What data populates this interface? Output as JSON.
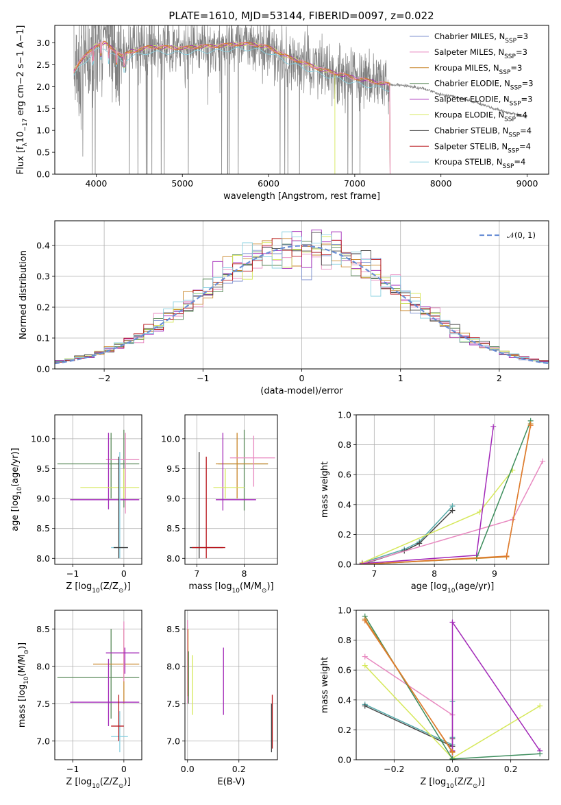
{
  "colors": {
    "chabrier_miles": "#7c8fcf",
    "salpeter_miles": "#e889c0",
    "kroupa_miles": "#c9862a",
    "chabrier_elodie": "#5a8a5a",
    "salpeter_elodie": "#a228b8",
    "kroupa_elodie": "#d6e85a",
    "chabrier_stelib": "#444444",
    "salpeter_stelib": "#b8141a",
    "kroupa_stelib": "#88d0e0",
    "observed": "#7f7f7f",
    "gauss": "#6a8fd6",
    "orange": "#e07b2f",
    "green2": "#3c8d5c",
    "teal": "#55aaaa"
  },
  "chart_data": [
    {
      "id": "spectrum",
      "type": "line",
      "title": "PLATE=1610, MJD=53144, FIBERID=0097, z=0.022",
      "xlabel": "wavelength [Angstrom, rest frame]",
      "ylabel_parts": [
        "Flux [f",
        "λ",
        "10",
        "−17",
        " erg cm",
        "−2",
        " s",
        "−1",
        " A",
        "−1",
        "]"
      ],
      "xlim": [
        3520,
        9250
      ],
      "ylim": [
        0,
        3.4
      ],
      "xticks": [
        4000,
        5000,
        6000,
        7000,
        8000,
        9000
      ],
      "yticks": [
        0.0,
        0.5,
        1.0,
        1.5,
        2.0,
        2.5,
        3.0
      ],
      "grid": false,
      "legend_position": "top-right",
      "legend": [
        {
          "label": "Chabrier MILES, N",
          "sub": "SSP",
          "suffix": "=3",
          "color": "chabrier_miles"
        },
        {
          "label": "Salpeter MILES, N",
          "sub": "SSP",
          "suffix": "=3",
          "color": "salpeter_miles"
        },
        {
          "label": "Kroupa MILES, N",
          "sub": "SSP",
          "suffix": "=3",
          "color": "kroupa_miles"
        },
        {
          "label": "Chabrier ELODIE, N",
          "sub": "SSP",
          "suffix": "=3",
          "color": "chabrier_elodie"
        },
        {
          "label": "Salpeter ELODIE, N",
          "sub": "SSP",
          "suffix": "=3",
          "color": "salpeter_elodie"
        },
        {
          "label": "Kroupa ELODIE, N",
          "sub": "SSP",
          "suffix": "=4",
          "color": "kroupa_elodie"
        },
        {
          "label": "Chabrier STELIB, N",
          "sub": "SSP",
          "suffix": "=4",
          "color": "chabrier_stelib"
        },
        {
          "label": "Salpeter STELIB, N",
          "sub": "SSP",
          "suffix": "=4",
          "color": "salpeter_stelib"
        },
        {
          "label": "Kroupa STELIB, N",
          "sub": "SSP",
          "suffix": "=4",
          "color": "kroupa_stelib"
        }
      ],
      "continuum": {
        "x": [
          3740,
          3800,
          3900,
          4000,
          4100,
          4200,
          4300,
          4400,
          4500,
          4600,
          4800,
          5000,
          5200,
          5400,
          5600,
          5800,
          6000,
          6200,
          6400,
          6600,
          6800,
          7000,
          7200,
          7400,
          7600,
          7800,
          8000,
          8200,
          8400,
          8600,
          8800,
          9000
        ],
        "y": [
          2.35,
          2.55,
          2.75,
          2.95,
          3.0,
          2.85,
          2.7,
          2.8,
          2.85,
          2.9,
          2.9,
          2.88,
          2.92,
          2.93,
          2.97,
          2.98,
          2.9,
          2.7,
          2.55,
          2.4,
          2.3,
          2.2,
          2.12,
          2.05,
          2.02,
          1.95,
          1.82,
          1.75,
          1.65,
          1.5,
          1.4,
          1.3
        ]
      },
      "model_ends": {
        "miles_elodie_end": 7410,
        "elodie_end": 6770
      }
    },
    {
      "id": "residuals",
      "type": "bar",
      "xlabel": "(data-model)/error",
      "ylabel": "Normed distribution",
      "xlim": [
        -2.5,
        2.5
      ],
      "ylim": [
        0,
        0.48
      ],
      "xticks": [
        -2,
        -1,
        0,
        1,
        2
      ],
      "yticks": [
        0.0,
        0.1,
        0.2,
        0.3,
        0.4
      ],
      "grid": true,
      "legend_position": "top-right",
      "legend_label": "𝒩(0, 1)",
      "bin_width": 0.1
    },
    {
      "id": "age_vs_Z",
      "type": "scatter",
      "xlabel_parts": [
        "Z [log",
        "10",
        "(Z/Z",
        "⊙",
        ")]"
      ],
      "ylabel_parts": [
        "age  [log",
        "10",
        "(age/yr)]"
      ],
      "xlim": [
        -1.35,
        0.35
      ],
      "ylim": [
        7.9,
        10.4
      ],
      "xticks": [
        -1,
        0
      ],
      "yticks": [
        8.0,
        8.5,
        9.0,
        9.5,
        10.0
      ],
      "grid": true,
      "crosses": [
        {
          "x": 0.0,
          "xlo": -0.3,
          "xhi": 0.3,
          "y": 9.58,
          "ylo": 8.85,
          "yhi": 10.15,
          "color": "chabrier_elodie"
        },
        {
          "x": -0.25,
          "xlo": -1.3,
          "xhi": 0.0,
          "y": 9.58,
          "ylo": 9.0,
          "yhi": 10.1,
          "color": "chabrier_elodie"
        },
        {
          "x": 0.03,
          "xlo": -0.35,
          "xhi": 0.3,
          "y": 9.65,
          "ylo": 8.75,
          "yhi": 10.1,
          "color": "salpeter_miles"
        },
        {
          "x": -0.3,
          "xlo": -1.05,
          "xhi": 0.3,
          "y": 8.98,
          "ylo": 8.82,
          "yhi": 10.1,
          "color": "salpeter_elodie"
        },
        {
          "x": 0.0,
          "xlo": -0.85,
          "xhi": 0.3,
          "y": 9.18,
          "ylo": 9.0,
          "yhi": 9.5,
          "color": "kroupa_elodie"
        },
        {
          "x": -0.08,
          "xlo": -0.25,
          "xhi": 0.08,
          "y": 8.18,
          "ylo": 8.0,
          "yhi": 9.78,
          "color": "kroupa_stelib"
        },
        {
          "x": -0.1,
          "xlo": -0.2,
          "xhi": 0.08,
          "y": 8.18,
          "ylo": 8.0,
          "yhi": 9.7,
          "color": "chabrier_stelib"
        }
      ]
    },
    {
      "id": "age_vs_mass",
      "type": "scatter",
      "xlabel_parts": [
        "mass [log",
        "10",
        "(M/M",
        "⊙",
        ")]"
      ],
      "xlim": [
        6.75,
        8.7
      ],
      "ylim": [
        7.9,
        10.4
      ],
      "xticks": [
        7,
        8
      ],
      "yticks": [
        8.0,
        8.5,
        9.0,
        9.5,
        10.0
      ],
      "grid": true,
      "crosses": [
        {
          "x": 8.0,
          "xlo": 7.45,
          "xhi": 8.5,
          "y": 9.58,
          "ylo": 8.8,
          "yhi": 10.15,
          "color": "chabrier_elodie"
        },
        {
          "x": 7.85,
          "xlo": 7.4,
          "xhi": 8.5,
          "y": 9.58,
          "ylo": 9.0,
          "yhi": 10.1,
          "color": "kroupa_miles"
        },
        {
          "x": 8.2,
          "xlo": 7.7,
          "xhi": 8.65,
          "y": 9.68,
          "ylo": 9.2,
          "yhi": 10.05,
          "color": "salpeter_miles"
        },
        {
          "x": 7.55,
          "xlo": 7.4,
          "xhi": 8.25,
          "y": 8.98,
          "ylo": 8.8,
          "yhi": 10.1,
          "color": "salpeter_elodie"
        },
        {
          "x": 7.6,
          "xlo": 7.35,
          "xhi": 8.0,
          "y": 9.18,
          "ylo": 9.0,
          "yhi": 9.5,
          "color": "kroupa_elodie"
        },
        {
          "x": 7.05,
          "xlo": 6.85,
          "xhi": 7.55,
          "y": 8.18,
          "ylo": 8.0,
          "yhi": 9.78,
          "color": "chabrier_stelib"
        },
        {
          "x": 7.2,
          "xlo": 6.9,
          "xhi": 7.6,
          "y": 8.18,
          "ylo": 8.0,
          "yhi": 9.7,
          "color": "salpeter_stelib"
        }
      ]
    },
    {
      "id": "weight_vs_age",
      "type": "line",
      "xlabel_parts": [
        "age  [log",
        "10",
        "(age/yr)]"
      ],
      "ylabel": "mass weight",
      "xlim": [
        6.7,
        9.9
      ],
      "ylim": [
        0,
        1.0
      ],
      "xticks": [
        7,
        8,
        9
      ],
      "yticks": [
        0.0,
        0.2,
        0.4,
        0.6,
        0.8,
        1.0
      ],
      "grid": true,
      "series": [
        {
          "color": "teal",
          "x": [
            6.8,
            7.5,
            7.75,
            8.3
          ],
          "y": [
            0.01,
            0.1,
            0.15,
            0.39
          ]
        },
        {
          "color": "chabrier_stelib",
          "x": [
            6.8,
            7.5,
            7.75,
            8.3
          ],
          "y": [
            0.0,
            0.09,
            0.14,
            0.36
          ]
        },
        {
          "color": "kroupa_elodie",
          "x": [
            6.8,
            8.75,
            9.3
          ],
          "y": [
            0.01,
            0.35,
            0.63
          ]
        },
        {
          "color": "salpeter_miles",
          "x": [
            6.8,
            9.3,
            9.8
          ],
          "y": [
            0.005,
            0.3,
            0.69
          ]
        },
        {
          "color": "salpeter_elodie",
          "x": [
            6.8,
            8.7,
            8.98
          ],
          "y": [
            0.005,
            0.06,
            0.92
          ]
        },
        {
          "color": "green2",
          "x": [
            6.8,
            8.7,
            9.6
          ],
          "y": [
            0.0,
            0.04,
            0.96
          ]
        },
        {
          "color": "kroupa_miles",
          "x": [
            6.8,
            9.2,
            9.6
          ],
          "y": [
            0.0,
            0.05,
            0.94
          ]
        },
        {
          "color": "orange",
          "x": [
            6.8,
            9.2,
            9.6
          ],
          "y": [
            0.0,
            0.055,
            0.93
          ]
        }
      ]
    },
    {
      "id": "mass_vs_Z",
      "type": "scatter",
      "xlabel_parts": [
        "Z [log",
        "10",
        "(Z/Z",
        "⊙",
        ")]"
      ],
      "ylabel_parts": [
        "mass [log",
        "10",
        "(M/M",
        "⊙",
        ")]"
      ],
      "xlim": [
        -1.35,
        0.35
      ],
      "ylim": [
        6.75,
        8.75
      ],
      "xticks": [
        -1,
        0
      ],
      "yticks": [
        7.0,
        7.5,
        8.0,
        8.5
      ],
      "grid": true,
      "crosses": [
        {
          "x": -0.25,
          "xlo": -1.3,
          "xhi": 0.3,
          "y": 7.85,
          "ylo": 7.3,
          "yhi": 8.5,
          "color": "chabrier_elodie"
        },
        {
          "x": 0.0,
          "xlo": -0.6,
          "xhi": 0.3,
          "y": 8.03,
          "ylo": 7.5,
          "yhi": 8.5,
          "color": "kroupa_miles"
        },
        {
          "x": 0.0,
          "xlo": -0.35,
          "xhi": 0.3,
          "y": 8.18,
          "ylo": 7.8,
          "yhi": 8.6,
          "color": "salpeter_miles"
        },
        {
          "x": -0.3,
          "xlo": -1.05,
          "xhi": 0.3,
          "y": 7.52,
          "ylo": 7.2,
          "yhi": 8.1,
          "color": "salpeter_elodie"
        },
        {
          "x": 0.02,
          "xlo": -0.35,
          "xhi": 0.3,
          "y": 8.18,
          "ylo": 7.9,
          "yhi": 8.25,
          "color": "salpeter_elodie"
        },
        {
          "x": -0.08,
          "xlo": -0.25,
          "xhi": 0.08,
          "y": 7.06,
          "ylo": 6.85,
          "yhi": 7.4,
          "color": "kroupa_stelib"
        },
        {
          "x": -0.1,
          "xlo": -0.25,
          "xhi": 0.0,
          "y": 7.2,
          "ylo": 7.0,
          "yhi": 7.62,
          "color": "salpeter_stelib"
        }
      ]
    },
    {
      "id": "mass_vs_ebv",
      "type": "scatter",
      "xlabel": "E(B-V)",
      "xlim": [
        -0.01,
        0.35
      ],
      "ylim": [
        6.75,
        8.75
      ],
      "xticks": [
        0.0,
        0.2
      ],
      "yticks": [
        7.0,
        7.5,
        8.0,
        8.5
      ],
      "grid": true,
      "crosses": [
        {
          "x": 0.0,
          "xlo": 0.0,
          "xhi": 0.0,
          "y": 8.1,
          "ylo": 7.5,
          "yhi": 8.62,
          "color": "salpeter_miles"
        },
        {
          "x": 0.002,
          "xlo": 0.002,
          "xhi": 0.002,
          "y": 8.0,
          "ylo": 7.6,
          "yhi": 8.5,
          "color": "kroupa_miles"
        },
        {
          "x": 0.004,
          "xlo": 0.004,
          "xhi": 0.004,
          "y": 7.9,
          "ylo": 7.5,
          "yhi": 8.2,
          "color": "chabrier_elodie"
        },
        {
          "x": 0.02,
          "xlo": 0.02,
          "xhi": 0.02,
          "y": 7.8,
          "ylo": 7.35,
          "yhi": 8.15,
          "color": "kroupa_elodie"
        },
        {
          "x": 0.14,
          "xlo": 0.14,
          "xhi": 0.14,
          "y": 7.8,
          "ylo": 7.35,
          "yhi": 8.25,
          "color": "salpeter_elodie"
        },
        {
          "x": 0.33,
          "xlo": 0.33,
          "xhi": 0.33,
          "y": 7.2,
          "ylo": 6.9,
          "yhi": 7.62,
          "color": "salpeter_stelib"
        },
        {
          "x": 0.327,
          "xlo": 0.327,
          "xhi": 0.327,
          "y": 7.1,
          "ylo": 6.85,
          "yhi": 7.5,
          "color": "chabrier_stelib"
        }
      ]
    },
    {
      "id": "weight_vs_Z",
      "type": "line",
      "xlabel_parts": [
        "Z [log",
        "10",
        "(Z/Z",
        "⊙",
        ")]"
      ],
      "ylabel": "mass weight",
      "xlim": [
        -0.33,
        0.33
      ],
      "ylim": [
        0,
        1.0
      ],
      "xticks": [
        -0.2,
        0.0,
        0.2
      ],
      "xticklabels": [
        "−0.2",
        "0.0",
        "0.2"
      ],
      "yticks": [
        0.0,
        0.2,
        0.4,
        0.6,
        0.8,
        1.0
      ],
      "grid": true,
      "series": [
        {
          "color": "teal",
          "x": [
            -0.3,
            0.0,
            0.0,
            0.0,
            0.0
          ],
          "y": [
            0.37,
            0.1,
            0.15,
            0.39,
            0.01
          ]
        },
        {
          "color": "chabrier_stelib",
          "x": [
            -0.3,
            0.0,
            0.0,
            0.0
          ],
          "y": [
            0.36,
            0.09,
            0.14,
            0.005
          ]
        },
        {
          "color": "kroupa_elodie",
          "x": [
            -0.3,
            0.0,
            0.3
          ],
          "y": [
            0.63,
            0.01,
            0.36
          ]
        },
        {
          "color": "salpeter_miles",
          "x": [
            -0.3,
            0.0,
            0.0
          ],
          "y": [
            0.69,
            0.3,
            0.005
          ]
        },
        {
          "color": "salpeter_elodie",
          "x": [
            0.0,
            0.0,
            0.3
          ],
          "y": [
            0.06,
            0.92,
            0.06
          ]
        },
        {
          "color": "green2",
          "x": [
            -0.3,
            0.0,
            0.3
          ],
          "y": [
            0.96,
            0.005,
            0.04
          ]
        },
        {
          "color": "kroupa_miles",
          "x": [
            -0.3,
            0.0
          ],
          "y": [
            0.94,
            0.05
          ]
        },
        {
          "color": "orange",
          "x": [
            -0.3,
            0.0
          ],
          "y": [
            0.93,
            0.055
          ]
        }
      ]
    }
  ]
}
